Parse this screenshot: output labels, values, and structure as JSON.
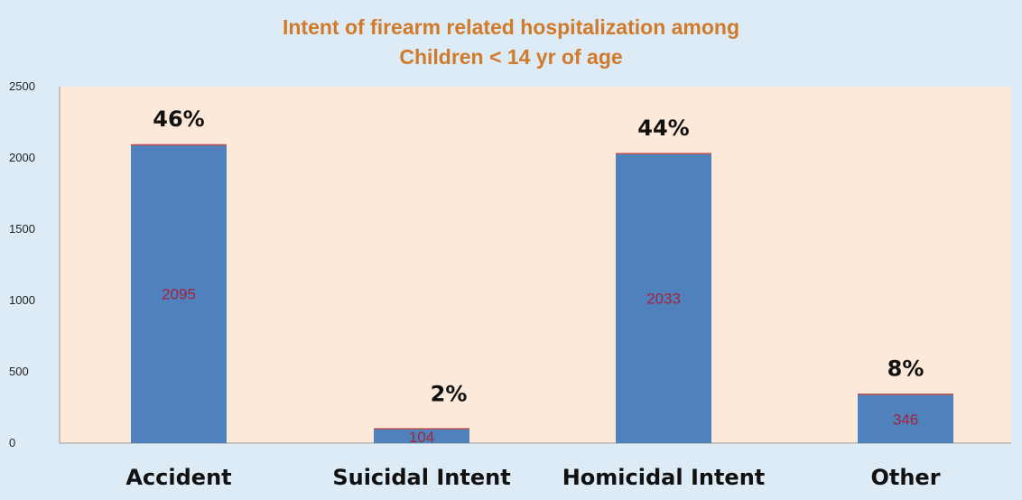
{
  "chart_data": {
    "type": "bar",
    "title_lines": [
      "Intent of firearm related hospitalization among",
      "Children < 14 yr of age"
    ],
    "categories": [
      "Accident",
      "Suicidal Intent",
      "Homicidal Intent",
      "Other"
    ],
    "values": [
      2095,
      104,
      2033,
      346
    ],
    "value_labels": [
      "2095",
      "104",
      "2033",
      "346"
    ],
    "percent_labels": [
      "46%",
      "2%",
      "44%",
      "8%"
    ],
    "ylim": [
      0,
      2500
    ],
    "yticks": [
      0,
      500,
      1000,
      1500,
      2000,
      2500
    ],
    "grid": false,
    "colors": {
      "bar": "#4f81bd",
      "bar_top": "#c0504d",
      "plot_bg": "#fde9d9",
      "page_bg": "#dcebf5",
      "title": "#d07a2a",
      "value_label": "#a3243b"
    }
  }
}
